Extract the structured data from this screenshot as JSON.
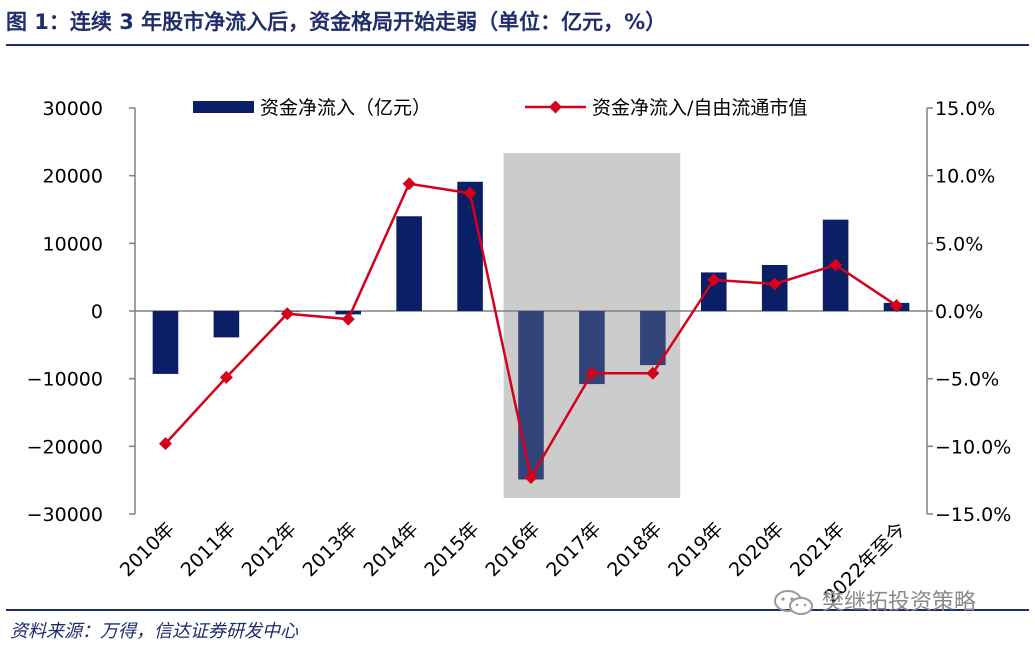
{
  "header": {
    "title": "图 1：连续 3 年股市净流入后，资金格局开始走弱（单位：亿元，%）"
  },
  "footer": {
    "source": "资料来源：万得，信达证券研发中心",
    "watermark": "樊继拓投资策略"
  },
  "chart_data": {
    "type": "bar",
    "categories": [
      "2010年",
      "2011年",
      "2012年",
      "2013年",
      "2014年",
      "2015年",
      "2016年",
      "2017年",
      "2018年",
      "2019年",
      "2020年",
      "2021年",
      "2022年至今"
    ],
    "series": [
      {
        "name": "资金净流入（亿元）",
        "type": "bar",
        "axis": "left",
        "values": [
          -9300,
          -3900,
          0,
          -500,
          14000,
          19100,
          -24900,
          -10800,
          -8000,
          5700,
          6800,
          13500,
          1200
        ]
      },
      {
        "name": "资金净流入/自由流通市值",
        "type": "line",
        "axis": "right",
        "values": [
          -9.8,
          -4.9,
          -0.2,
          -0.6,
          9.4,
          8.7,
          -12.3,
          -4.6,
          -4.6,
          2.3,
          2.0,
          3.4,
          0.4
        ]
      }
    ],
    "y_left": {
      "min": -30000,
      "max": 30000,
      "ticks": [
        "30000",
        "20000",
        "10000",
        "0",
        "−10000",
        "−20000",
        "−30000"
      ]
    },
    "y_right": {
      "min": -15,
      "max": 15,
      "ticks": [
        "15.0%",
        "10.0%",
        "5.0%",
        "0.0%",
        "−5.0%",
        "−10.0%",
        "−15.0%"
      ]
    },
    "shaded_range": [
      "2016年",
      "2018年"
    ],
    "legend_position": "top",
    "grid": false,
    "colors": {
      "bar": "#0b1f66",
      "bar_shaded": "#33447a",
      "line": "#d6001c",
      "shade": "#cccccc",
      "axis": "#808080",
      "text": "#000000"
    }
  }
}
